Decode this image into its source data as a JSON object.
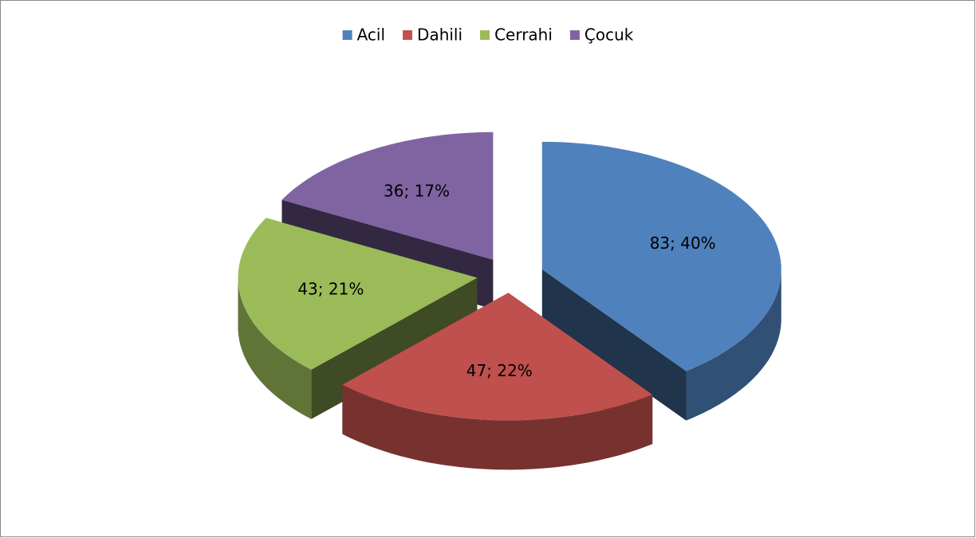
{
  "chart_data": {
    "type": "pie",
    "categories": [
      "Acil",
      "Dahili",
      "Cerrahi",
      "Çocuk"
    ],
    "values": [
      83,
      47,
      43,
      36
    ],
    "value_labels": [
      "83; 40%",
      "47; 22%",
      "43; 21%",
      "36; 17%"
    ],
    "colors": [
      "#4f81bd",
      "#c0504d",
      "#9bbb59",
      "#8064a2"
    ],
    "legend": "top"
  }
}
